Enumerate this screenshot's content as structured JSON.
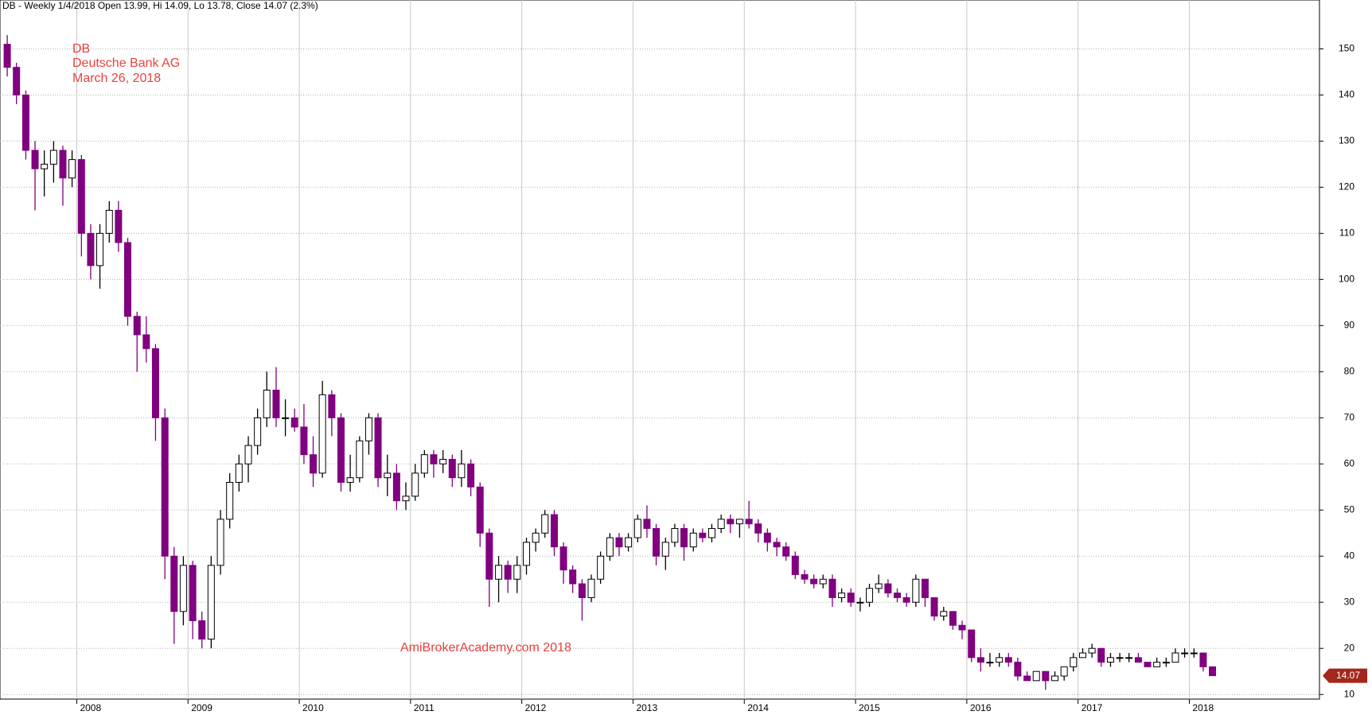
{
  "chart_data": {
    "type": "candlestick",
    "title": "DB - Weekly 1/4/2018 Open 13.99, Hi 14.09, Lo 13.78, Close 14.07 (2.3%)",
    "annotations": [
      "DB",
      "Deutsche Bank AG",
      "March 26, 2018"
    ],
    "watermark": "AmiBrokerAcademy.com  2018",
    "up_color": "#ffffff",
    "down_color": "#800080",
    "outline_color": "#000000",
    "grid": true,
    "xlim": [
      2007.31,
      2019.17
    ],
    "xticks": [
      2008,
      2009,
      2010,
      2011,
      2012,
      2013,
      2014,
      2015,
      2016,
      2017,
      2018
    ],
    "ylim": [
      9,
      160.6
    ],
    "yticks": [
      10,
      20,
      30,
      40,
      50,
      60,
      70,
      80,
      90,
      100,
      110,
      120,
      130,
      140,
      150
    ],
    "x": [
      2007.375,
      2007.458,
      2007.542,
      2007.625,
      2007.708,
      2007.792,
      2007.875,
      2007.958,
      2008.042,
      2008.125,
      2008.208,
      2008.292,
      2008.375,
      2008.458,
      2008.542,
      2008.625,
      2008.708,
      2008.792,
      2008.875,
      2008.958,
      2009.042,
      2009.125,
      2009.208,
      2009.292,
      2009.375,
      2009.458,
      2009.542,
      2009.625,
      2009.708,
      2009.792,
      2009.875,
      2009.958,
      2010.042,
      2010.125,
      2010.208,
      2010.292,
      2010.375,
      2010.458,
      2010.542,
      2010.625,
      2010.708,
      2010.792,
      2010.875,
      2010.958,
      2011.042,
      2011.125,
      2011.208,
      2011.292,
      2011.375,
      2011.458,
      2011.542,
      2011.625,
      2011.708,
      2011.792,
      2011.875,
      2011.958,
      2012.042,
      2012.125,
      2012.208,
      2012.292,
      2012.375,
      2012.458,
      2012.542,
      2012.625,
      2012.708,
      2012.792,
      2012.875,
      2012.958,
      2013.042,
      2013.125,
      2013.208,
      2013.292,
      2013.375,
      2013.458,
      2013.542,
      2013.625,
      2013.708,
      2013.792,
      2013.875,
      2013.958,
      2014.042,
      2014.125,
      2014.208,
      2014.292,
      2014.375,
      2014.458,
      2014.542,
      2014.625,
      2014.708,
      2014.792,
      2014.875,
      2014.958,
      2015.042,
      2015.125,
      2015.208,
      2015.292,
      2015.375,
      2015.458,
      2015.542,
      2015.625,
      2015.708,
      2015.792,
      2015.875,
      2015.958,
      2016.042,
      2016.125,
      2016.208,
      2016.292,
      2016.375,
      2016.458,
      2016.542,
      2016.625,
      2016.708,
      2016.792,
      2016.875,
      2016.958,
      2017.042,
      2017.125,
      2017.208,
      2017.292,
      2017.375,
      2017.458,
      2017.542,
      2017.625,
      2017.708,
      2017.792,
      2017.875,
      2017.958,
      2018.042,
      2018.125,
      2018.208
    ],
    "open": [
      151,
      146,
      140,
      128,
      124,
      125,
      128,
      122,
      126,
      110,
      103,
      110,
      115,
      108,
      92,
      88,
      85,
      70,
      40,
      28,
      38,
      26,
      22,
      38,
      48,
      56,
      60,
      64,
      70,
      76,
      70,
      70,
      68,
      62,
      58,
      75,
      70,
      56,
      57,
      65,
      70,
      57,
      58,
      52,
      53,
      58,
      62,
      60,
      61,
      57,
      60,
      55,
      45,
      35,
      38,
      35,
      38,
      43,
      45,
      49,
      42,
      37,
      34,
      31,
      35,
      40,
      44,
      42,
      44,
      48,
      46,
      40,
      43,
      46,
      42,
      45,
      44,
      46,
      48,
      47,
      48,
      47,
      45,
      43,
      42,
      40,
      36,
      35,
      34,
      35,
      31,
      32,
      30,
      30,
      33,
      34,
      32,
      31,
      30,
      35,
      31,
      27,
      28,
      25,
      24,
      18,
      17,
      17,
      18,
      17,
      14,
      13,
      15,
      13,
      14,
      16,
      18,
      19,
      20,
      17,
      18,
      18,
      18,
      17,
      16,
      17,
      17,
      19,
      19,
      19,
      16
    ],
    "high": [
      153,
      147,
      141,
      130,
      128,
      130,
      129,
      128,
      127,
      112,
      112,
      117,
      117,
      109,
      93,
      92,
      86,
      72,
      42,
      40,
      39,
      28,
      40,
      50,
      58,
      62,
      66,
      72,
      80,
      81,
      74,
      72,
      73,
      66,
      78,
      76,
      71,
      62,
      66,
      71,
      71,
      62,
      60,
      56,
      60,
      63,
      63,
      63,
      62,
      63,
      61,
      56,
      46,
      40,
      39,
      40,
      44,
      46,
      50,
      50,
      43,
      38,
      35,
      36,
      41,
      45,
      45,
      45,
      49,
      51,
      47,
      44,
      47,
      47,
      46,
      46,
      47,
      49,
      49,
      48,
      52,
      48,
      46,
      44,
      43,
      41,
      37,
      36,
      36,
      36,
      33,
      33,
      31,
      34,
      36,
      35,
      33,
      32,
      36,
      35,
      31,
      29,
      28,
      26,
      24,
      20,
      19,
      19,
      19,
      18,
      15,
      15,
      15,
      15,
      16,
      19,
      20,
      21,
      20,
      19,
      19,
      19,
      19,
      17,
      18,
      18,
      20,
      20,
      20,
      19,
      16
    ],
    "low": [
      144,
      138,
      126,
      115,
      118,
      121,
      116,
      120,
      105,
      100,
      98,
      108,
      106,
      90,
      80,
      82,
      65,
      35,
      21,
      25,
      22,
      20,
      20,
      36,
      46,
      54,
      56,
      62,
      68,
      68,
      66,
      67,
      60,
      55,
      57,
      66,
      54,
      54,
      56,
      62,
      55,
      53,
      50,
      50,
      52,
      57,
      57,
      58,
      55,
      55,
      53,
      42,
      29,
      30,
      32,
      32,
      36,
      41,
      44,
      40,
      34,
      32,
      26,
      30,
      34,
      39,
      40,
      41,
      43,
      44,
      38,
      37,
      42,
      39,
      41,
      43,
      43,
      45,
      45,
      44,
      46,
      43,
      41,
      40,
      39,
      35,
      34,
      33,
      33,
      29,
      30,
      29,
      28,
      29,
      32,
      31,
      30,
      29,
      29,
      29,
      26,
      26,
      24,
      22,
      17,
      15,
      16,
      16,
      16,
      13,
      13,
      13,
      11,
      13,
      13,
      15,
      18,
      18,
      16,
      16,
      17,
      17,
      17,
      16,
      16,
      16,
      17,
      18,
      18,
      15,
      14
    ],
    "close": [
      146,
      140,
      128,
      124,
      125,
      128,
      122,
      126,
      110,
      103,
      110,
      115,
      108,
      92,
      88,
      85,
      70,
      40,
      28,
      38,
      26,
      22,
      38,
      48,
      56,
      60,
      64,
      70,
      76,
      70,
      70,
      68,
      62,
      58,
      75,
      70,
      56,
      57,
      65,
      70,
      57,
      58,
      52,
      53,
      58,
      62,
      60,
      61,
      57,
      60,
      55,
      45,
      35,
      38,
      35,
      38,
      43,
      45,
      49,
      42,
      37,
      34,
      31,
      35,
      40,
      44,
      42,
      44,
      48,
      46,
      40,
      43,
      46,
      42,
      45,
      44,
      46,
      48,
      47,
      48,
      47,
      45,
      43,
      42,
      40,
      36,
      35,
      34,
      35,
      31,
      32,
      30,
      30,
      33,
      34,
      32,
      31,
      30,
      35,
      31,
      27,
      28,
      25,
      24,
      18,
      17,
      17,
      18,
      17,
      14,
      13,
      15,
      13,
      14,
      16,
      18,
      19,
      20,
      17,
      18,
      18,
      18,
      17,
      16,
      17,
      17,
      19,
      19,
      19,
      16,
      14.07
    ]
  }
}
